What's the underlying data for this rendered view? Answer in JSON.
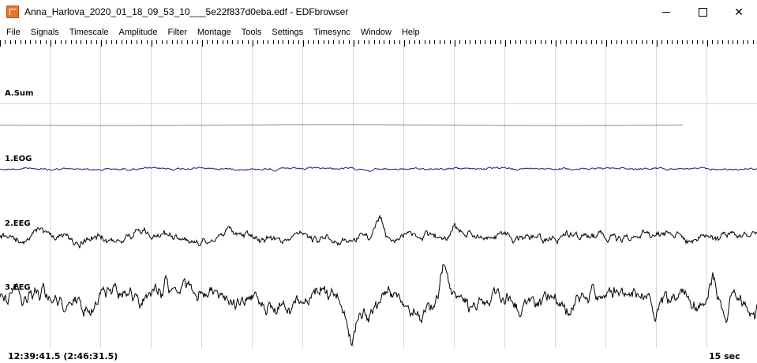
{
  "window": {
    "title": "Anna_Harlova_2020_01_18_09_53_10___5e22f837d0eba.edf - EDFbrowser",
    "minimize_glyph": "—",
    "maximize_glyph": "☐",
    "close_glyph": "✕"
  },
  "menu": {
    "items": [
      "File",
      "Signals",
      "Timescale",
      "Amplitude",
      "Filter",
      "Montage",
      "Tools",
      "Settings",
      "Timesync",
      "Window",
      "Help"
    ]
  },
  "signals": [
    {
      "label": "A.Sum",
      "color": "#888888"
    },
    {
      "label": "1.EOG",
      "color": "#1a1a9c"
    },
    {
      "label": "2.EEG",
      "color": "#000000"
    },
    {
      "label": "3.EEG",
      "color": "#000000"
    }
  ],
  "footer": {
    "time_position": "12:39:41.5 (2:46:31.5)",
    "timescale": "15 sec"
  },
  "colors": {
    "grid": "#d8d8d8",
    "ruler": "#000000",
    "background": "#ffffff"
  }
}
